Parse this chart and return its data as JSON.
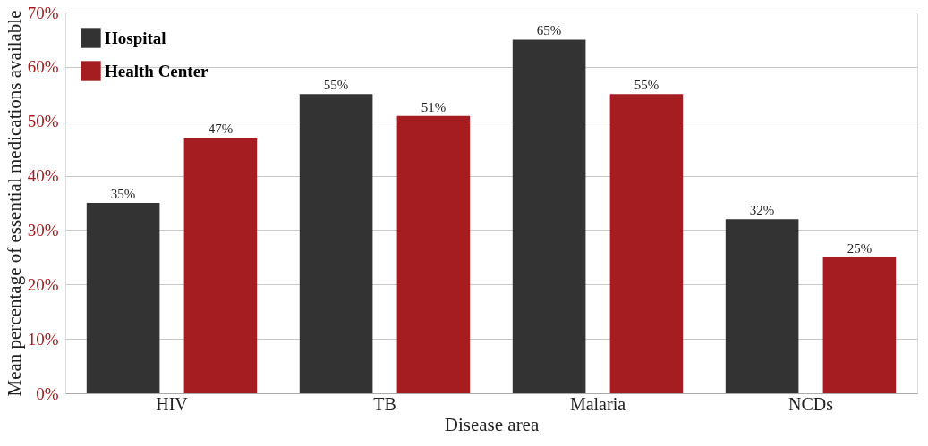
{
  "chart_data": {
    "type": "bar",
    "xlabel": "Disease area",
    "ylabel": "Mean percentage of essential medications available",
    "categories": [
      "HIV",
      "TB",
      "Malaria",
      "NCDs"
    ],
    "series": [
      {
        "name": "Hospital",
        "color": "#333333",
        "values": [
          35,
          55,
          65,
          32
        ],
        "value_labels": [
          "35%",
          "55%",
          "65%",
          "32%"
        ]
      },
      {
        "name": "Health Center",
        "color": "#a51d21",
        "values": [
          47,
          51,
          55,
          25
        ],
        "value_labels": [
          "47%",
          "51%",
          "55%",
          "25%"
        ]
      }
    ],
    "ylim": [
      0,
      70
    ],
    "yticks": [
      {
        "value": 0,
        "label": "0%"
      },
      {
        "value": 10,
        "label": "10%"
      },
      {
        "value": 20,
        "label": "20%"
      },
      {
        "value": 30,
        "label": "30%"
      },
      {
        "value": 40,
        "label": "40%"
      },
      {
        "value": 50,
        "label": "50%"
      },
      {
        "value": 60,
        "label": "60%"
      },
      {
        "value": 70,
        "label": "70%"
      }
    ],
    "grid": "y",
    "legend": "top left"
  }
}
